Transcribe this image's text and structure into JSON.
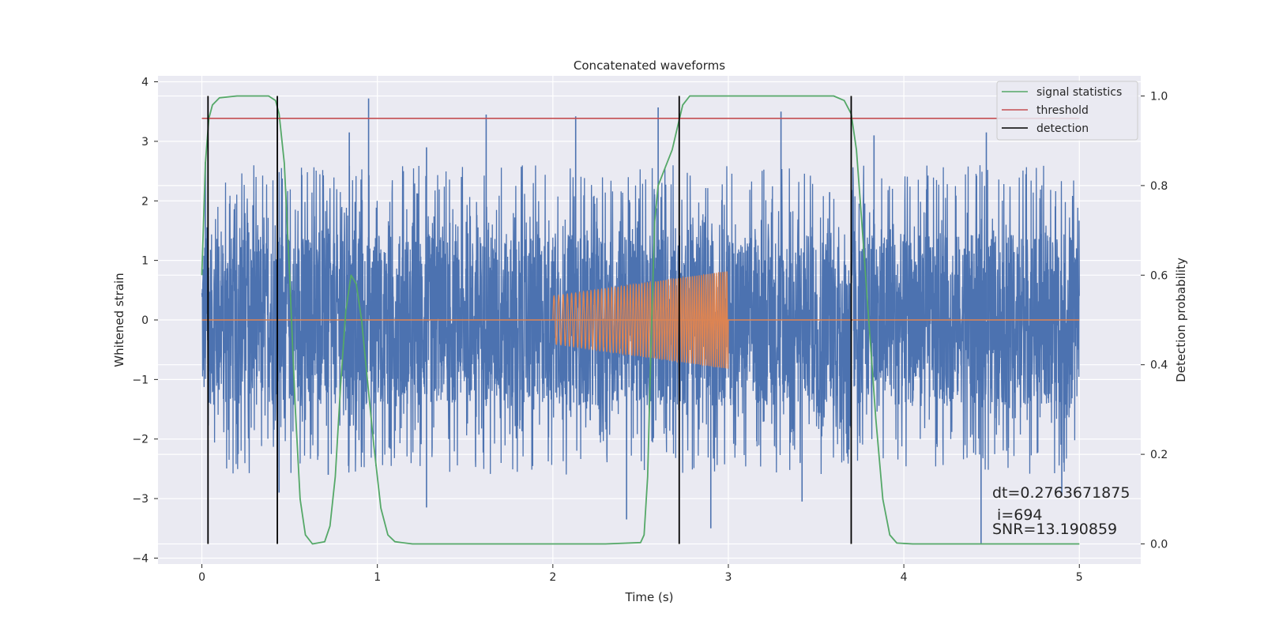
{
  "chart_data": {
    "type": "line",
    "title": "Concatenated waveforms",
    "xlabel": "Time (s)",
    "ylabel": "Whitened strain",
    "y2label": "Detection probability",
    "xlim": [
      -0.25,
      5.35
    ],
    "ylim": [
      -4.1,
      4.1
    ],
    "y2lim": [
      -0.045,
      1.045
    ],
    "xticks": [
      0,
      1,
      2,
      3,
      4,
      5
    ],
    "xtick_labels": [
      "0",
      "1",
      "2",
      "3",
      "4",
      "5"
    ],
    "yticks": [
      4,
      3,
      2,
      1,
      0,
      -1,
      -2,
      -3,
      -4
    ],
    "ytick_labels": [
      "4",
      "3",
      "2",
      "1",
      "0",
      "−1",
      "−2",
      "−3",
      "−4"
    ],
    "y2ticks": [
      1.0,
      0.8,
      0.6,
      0.4,
      0.2,
      0.0
    ],
    "y2tick_labels": [
      "1.0",
      "0.8",
      "0.6",
      "0.4",
      "0.2",
      "0.0"
    ],
    "grid": true,
    "legend_position": "top-right",
    "colors": {
      "background": "#eaeaf2",
      "grid": "#ffffff",
      "strain": "#4c72b0",
      "template": "#dd8452",
      "signal": "#55a868",
      "threshold": "#c44e52",
      "detection": "#000000"
    },
    "strain": {
      "x_range": [
        0,
        5
      ],
      "band_amplitude": 1.45,
      "typical_peak": 2.6,
      "outliers": [
        {
          "x": 0.02,
          "y": 2.65
        },
        {
          "x": 0.95,
          "y": 3.72
        },
        {
          "x": 0.84,
          "y": 3.15
        },
        {
          "x": 1.62,
          "y": 3.45
        },
        {
          "x": 2.13,
          "y": 3.42
        },
        {
          "x": 2.6,
          "y": 3.57
        },
        {
          "x": 3.3,
          "y": 3.5
        },
        {
          "x": 4.47,
          "y": 3.15
        },
        {
          "x": 1.28,
          "y": 2.9
        },
        {
          "x": 3.83,
          "y": 3.1
        },
        {
          "x": 2.42,
          "y": -3.35
        },
        {
          "x": 2.9,
          "y": -3.5
        },
        {
          "x": 4.44,
          "y": -3.75
        },
        {
          "x": 1.28,
          "y": -3.15
        },
        {
          "x": 0.44,
          "y": -2.9
        },
        {
          "x": 4.9,
          "y": -2.95
        },
        {
          "x": 3.42,
          "y": -3.05
        },
        {
          "x": 0.72,
          "y": -2.6
        }
      ]
    },
    "template": {
      "name": "",
      "chirp_start": 2.0,
      "chirp_end": 3.0,
      "amplitude_start": 0.4,
      "amplitude_end": 0.82,
      "cycles": 62
    },
    "series": [
      {
        "name": "signal statistics",
        "axis": "right",
        "points": [
          [
            0.0,
            0.6
          ],
          [
            0.02,
            0.85
          ],
          [
            0.04,
            0.95
          ],
          [
            0.06,
            0.98
          ],
          [
            0.1,
            0.996
          ],
          [
            0.2,
            1.0
          ],
          [
            0.38,
            1.0
          ],
          [
            0.42,
            0.99
          ],
          [
            0.44,
            0.96
          ],
          [
            0.47,
            0.85
          ],
          [
            0.5,
            0.6
          ],
          [
            0.53,
            0.32
          ],
          [
            0.56,
            0.1
          ],
          [
            0.59,
            0.02
          ],
          [
            0.63,
            0.0
          ],
          [
            0.7,
            0.005
          ],
          [
            0.73,
            0.04
          ],
          [
            0.76,
            0.15
          ],
          [
            0.79,
            0.35
          ],
          [
            0.82,
            0.52
          ],
          [
            0.85,
            0.6
          ],
          [
            0.88,
            0.58
          ],
          [
            0.91,
            0.5
          ],
          [
            0.94,
            0.38
          ],
          [
            0.98,
            0.22
          ],
          [
            1.02,
            0.08
          ],
          [
            1.06,
            0.02
          ],
          [
            1.1,
            0.005
          ],
          [
            1.2,
            0.0
          ],
          [
            2.3,
            0.0
          ],
          [
            2.5,
            0.003
          ],
          [
            2.52,
            0.02
          ],
          [
            2.54,
            0.15
          ],
          [
            2.56,
            0.45
          ],
          [
            2.58,
            0.72
          ],
          [
            2.6,
            0.8
          ],
          [
            2.64,
            0.84
          ],
          [
            2.68,
            0.88
          ],
          [
            2.71,
            0.93
          ],
          [
            2.74,
            0.98
          ],
          [
            2.78,
            1.0
          ],
          [
            3.6,
            1.0
          ],
          [
            3.66,
            0.99
          ],
          [
            3.7,
            0.96
          ],
          [
            3.73,
            0.88
          ],
          [
            3.76,
            0.72
          ],
          [
            3.8,
            0.5
          ],
          [
            3.84,
            0.28
          ],
          [
            3.88,
            0.1
          ],
          [
            3.92,
            0.02
          ],
          [
            3.96,
            0.002
          ],
          [
            4.05,
            0.0
          ],
          [
            5.0,
            0.0
          ]
        ]
      },
      {
        "name": "threshold",
        "axis": "right",
        "value": 0.95,
        "x_range": [
          0,
          5
        ]
      },
      {
        "name": "detection",
        "axis": "right",
        "x": [
          0.035,
          0.43,
          2.72,
          3.7
        ],
        "y_range": [
          0.0,
          1.0
        ]
      }
    ],
    "annotations": [
      {
        "text": "dt=0.2763671875",
        "x": 4.5,
        "y2": 0.1
      },
      {
        "text": " i=694",
        "x": 4.5,
        "y2": 0.05
      },
      {
        "text": "SNR=13.190859",
        "x": 4.5,
        "y2": 0.025
      }
    ]
  }
}
